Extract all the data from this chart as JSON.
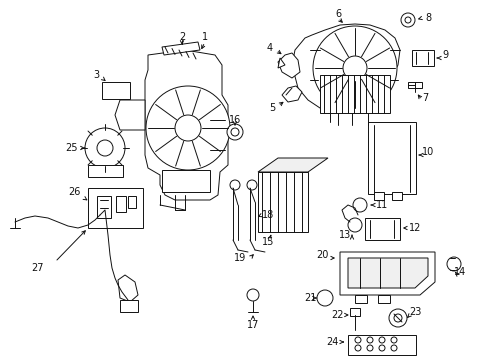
{
  "bg_color": "#ffffff",
  "line_color": "#111111",
  "figsize": [
    4.89,
    3.6
  ],
  "dpi": 100,
  "title": ""
}
